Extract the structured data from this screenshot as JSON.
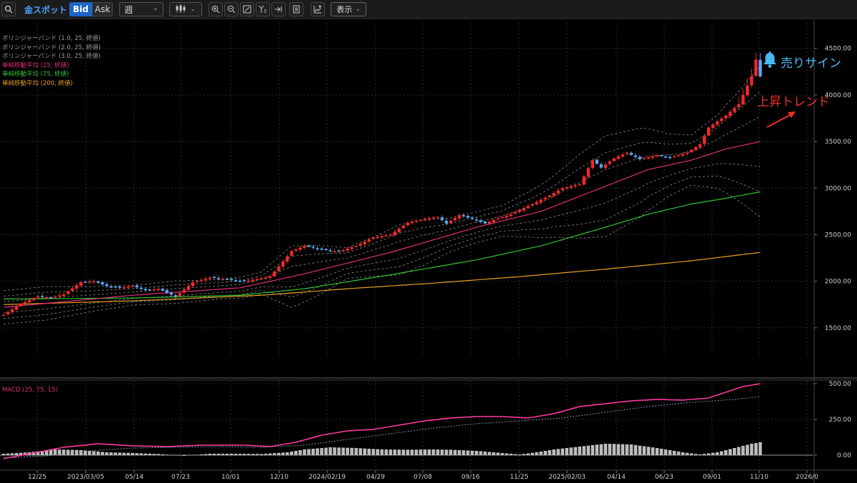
{
  "toolbar": {
    "symbol": "金スポット",
    "bid_label": "Bid",
    "ask_label": "Ask",
    "period": "週",
    "display_label": "表示"
  },
  "legend": [
    {
      "text": "ボリンジャーバンド (1.0, 25, 終値)",
      "color": "#9a9a9a"
    },
    {
      "text": "ボリンジャーバンド (2.0, 25, 終値)",
      "color": "#9a9a9a"
    },
    {
      "text": "ボリンジャーバンド (3.0, 25, 終値)",
      "color": "#9a9a9a"
    },
    {
      "text": "単純移動平均 (25, 終値)",
      "color": "#e0307a"
    },
    {
      "text": "単純移動平均 (75, 終値)",
      "color": "#33c233"
    },
    {
      "text": "単純移動平均 (200, 終値)",
      "color": "#e6a020"
    }
  ],
  "macd_label": "MACD (25, 75, 15)",
  "annotations": {
    "sell_signal": "売りサイン",
    "uptrend": "上昇トレンド"
  },
  "chart_data": {
    "type": "candlestick",
    "timeframe": "週",
    "price_axis": {
      "ticks": [
        1500,
        2000,
        2500,
        3000,
        3500,
        4000,
        4500
      ],
      "tick_labels": [
        "1500.00",
        "2000.00",
        "2500.00",
        "3000.00",
        "3500.00",
        "4000.00",
        "4500.00"
      ],
      "range": [
        1200,
        4660
      ]
    },
    "macd_axis": {
      "ticks": [
        0,
        250,
        500
      ],
      "tick_labels": [
        "0.00",
        "250.00",
        "500.00"
      ],
      "range": [
        -50,
        560
      ]
    },
    "time_axis_labels": [
      "12/25",
      "2023/03/05",
      "05/14",
      "07/23",
      "10/01",
      "12/10",
      "2024/02/19",
      "04/29",
      "07/08",
      "09/16",
      "11/25",
      "2025/02/03",
      "04/14",
      "06/23",
      "09/01",
      "11/10",
      "2026/0"
    ],
    "colors": {
      "up": "#f02a2a",
      "down": "#5aa8f0",
      "sma25": "#e0307a",
      "sma75": "#33c233",
      "sma200": "#e6a020",
      "bollinger": "#8a8a8a",
      "macd": "#ff3aa0",
      "signal": "#7a8fb0",
      "histogram": "#bdbdbd",
      "grid": "#2b2b2b",
      "zero": "#9a9a9a"
    },
    "series": {
      "close_anchors": [
        [
          0,
          1640
        ],
        [
          4,
          1760
        ],
        [
          8,
          1840
        ],
        [
          11,
          1825
        ],
        [
          14,
          1860
        ],
        [
          18,
          1990
        ],
        [
          21,
          2000
        ],
        [
          24,
          1950
        ],
        [
          27,
          1930
        ],
        [
          30,
          1950
        ],
        [
          33,
          1905
        ],
        [
          36,
          1920
        ],
        [
          40,
          1835
        ],
        [
          44,
          1990
        ],
        [
          48,
          2040
        ],
        [
          52,
          2020
        ],
        [
          56,
          2000
        ],
        [
          62,
          2050
        ],
        [
          67,
          2325
        ],
        [
          70,
          2380
        ],
        [
          74,
          2340
        ],
        [
          78,
          2320
        ],
        [
          82,
          2380
        ],
        [
          86,
          2470
        ],
        [
          90,
          2500
        ],
        [
          94,
          2630
        ],
        [
          98,
          2670
        ],
        [
          101,
          2690
        ],
        [
          103,
          2620
        ],
        [
          106,
          2710
        ],
        [
          109,
          2670
        ],
        [
          112,
          2620
        ],
        [
          114,
          2660
        ],
        [
          118,
          2720
        ],
        [
          123,
          2830
        ],
        [
          127,
          2920
        ],
        [
          130,
          3000
        ],
        [
          134,
          3040
        ],
        [
          137,
          3300
        ],
        [
          139,
          3220
        ],
        [
          142,
          3320
        ],
        [
          145,
          3380
        ],
        [
          148,
          3310
        ],
        [
          152,
          3350
        ],
        [
          155,
          3330
        ],
        [
          159,
          3380
        ],
        [
          162,
          3470
        ],
        [
          164,
          3650
        ],
        [
          168,
          3780
        ],
        [
          171,
          3900
        ],
        [
          174,
          4200
        ],
        [
          175,
          4380
        ],
        [
          176,
          4200
        ]
      ],
      "sma25_anchors": [
        [
          0,
          1720
        ],
        [
          30,
          1850
        ],
        [
          55,
          1930
        ],
        [
          70,
          2080
        ],
        [
          90,
          2310
        ],
        [
          110,
          2580
        ],
        [
          125,
          2750
        ],
        [
          140,
          3020
        ],
        [
          150,
          3200
        ],
        [
          160,
          3300
        ],
        [
          168,
          3420
        ],
        [
          176,
          3500
        ]
      ],
      "sma75_anchors": [
        [
          0,
          1810
        ],
        [
          30,
          1820
        ],
        [
          55,
          1850
        ],
        [
          70,
          1920
        ],
        [
          90,
          2070
        ],
        [
          110,
          2230
        ],
        [
          125,
          2380
        ],
        [
          140,
          2580
        ],
        [
          150,
          2720
        ],
        [
          160,
          2830
        ],
        [
          168,
          2890
        ],
        [
          176,
          2960
        ]
      ],
      "sma200_anchors": [
        [
          0,
          1750
        ],
        [
          30,
          1790
        ],
        [
          60,
          1850
        ],
        [
          80,
          1920
        ],
        [
          100,
          1980
        ],
        [
          120,
          2050
        ],
        [
          140,
          2130
        ],
        [
          160,
          2220
        ],
        [
          176,
          2310
        ]
      ],
      "band_sigma_anchors": [
        [
          0,
          60
        ],
        [
          10,
          60
        ],
        [
          20,
          45
        ],
        [
          30,
          35
        ],
        [
          40,
          40
        ],
        [
          50,
          35
        ],
        [
          60,
          40
        ],
        [
          67,
          110
        ],
        [
          73,
          90
        ],
        [
          80,
          55
        ],
        [
          86,
          70
        ],
        [
          92,
          90
        ],
        [
          98,
          80
        ],
        [
          104,
          60
        ],
        [
          110,
          55
        ],
        [
          116,
          55
        ],
        [
          122,
          80
        ],
        [
          128,
          110
        ],
        [
          134,
          150
        ],
        [
          140,
          180
        ],
        [
          148,
          160
        ],
        [
          155,
          110
        ],
        [
          160,
          90
        ],
        [
          166,
          130
        ],
        [
          172,
          210
        ],
        [
          176,
          270
        ]
      ],
      "macd_anchors": [
        [
          0,
          -25
        ],
        [
          6,
          10
        ],
        [
          14,
          55
        ],
        [
          22,
          80
        ],
        [
          30,
          65
        ],
        [
          38,
          60
        ],
        [
          46,
          70
        ],
        [
          56,
          70
        ],
        [
          62,
          60
        ],
        [
          68,
          90
        ],
        [
          74,
          140
        ],
        [
          80,
          170
        ],
        [
          86,
          180
        ],
        [
          92,
          210
        ],
        [
          98,
          240
        ],
        [
          104,
          260
        ],
        [
          110,
          270
        ],
        [
          116,
          270
        ],
        [
          122,
          260
        ],
        [
          128,
          290
        ],
        [
          134,
          340
        ],
        [
          140,
          360
        ],
        [
          146,
          380
        ],
        [
          152,
          390
        ],
        [
          158,
          385
        ],
        [
          164,
          400
        ],
        [
          168,
          440
        ],
        [
          172,
          480
        ],
        [
          176,
          500
        ]
      ],
      "signal_anchors": [
        [
          0,
          -20
        ],
        [
          10,
          -5
        ],
        [
          20,
          30
        ],
        [
          30,
          50
        ],
        [
          40,
          55
        ],
        [
          50,
          60
        ],
        [
          60,
          55
        ],
        [
          70,
          70
        ],
        [
          80,
          110
        ],
        [
          90,
          150
        ],
        [
          100,
          190
        ],
        [
          110,
          220
        ],
        [
          120,
          240
        ],
        [
          130,
          260
        ],
        [
          140,
          300
        ],
        [
          150,
          340
        ],
        [
          160,
          370
        ],
        [
          170,
          390
        ],
        [
          176,
          410
        ]
      ],
      "histogram_anchors": [
        [
          0,
          10
        ],
        [
          6,
          20
        ],
        [
          12,
          40
        ],
        [
          18,
          35
        ],
        [
          24,
          20
        ],
        [
          30,
          15
        ],
        [
          36,
          8
        ],
        [
          42,
          -5
        ],
        [
          48,
          10
        ],
        [
          54,
          10
        ],
        [
          60,
          8
        ],
        [
          66,
          20
        ],
        [
          70,
          40
        ],
        [
          76,
          55
        ],
        [
          82,
          50
        ],
        [
          88,
          40
        ],
        [
          94,
          38
        ],
        [
          100,
          40
        ],
        [
          104,
          38
        ],
        [
          110,
          30
        ],
        [
          116,
          15
        ],
        [
          120,
          5
        ],
        [
          124,
          20
        ],
        [
          128,
          40
        ],
        [
          134,
          60
        ],
        [
          140,
          80
        ],
        [
          146,
          75
        ],
        [
          152,
          50
        ],
        [
          158,
          20
        ],
        [
          162,
          5
        ],
        [
          166,
          20
        ],
        [
          170,
          50
        ],
        [
          174,
          80
        ],
        [
          176,
          90
        ]
      ]
    }
  }
}
